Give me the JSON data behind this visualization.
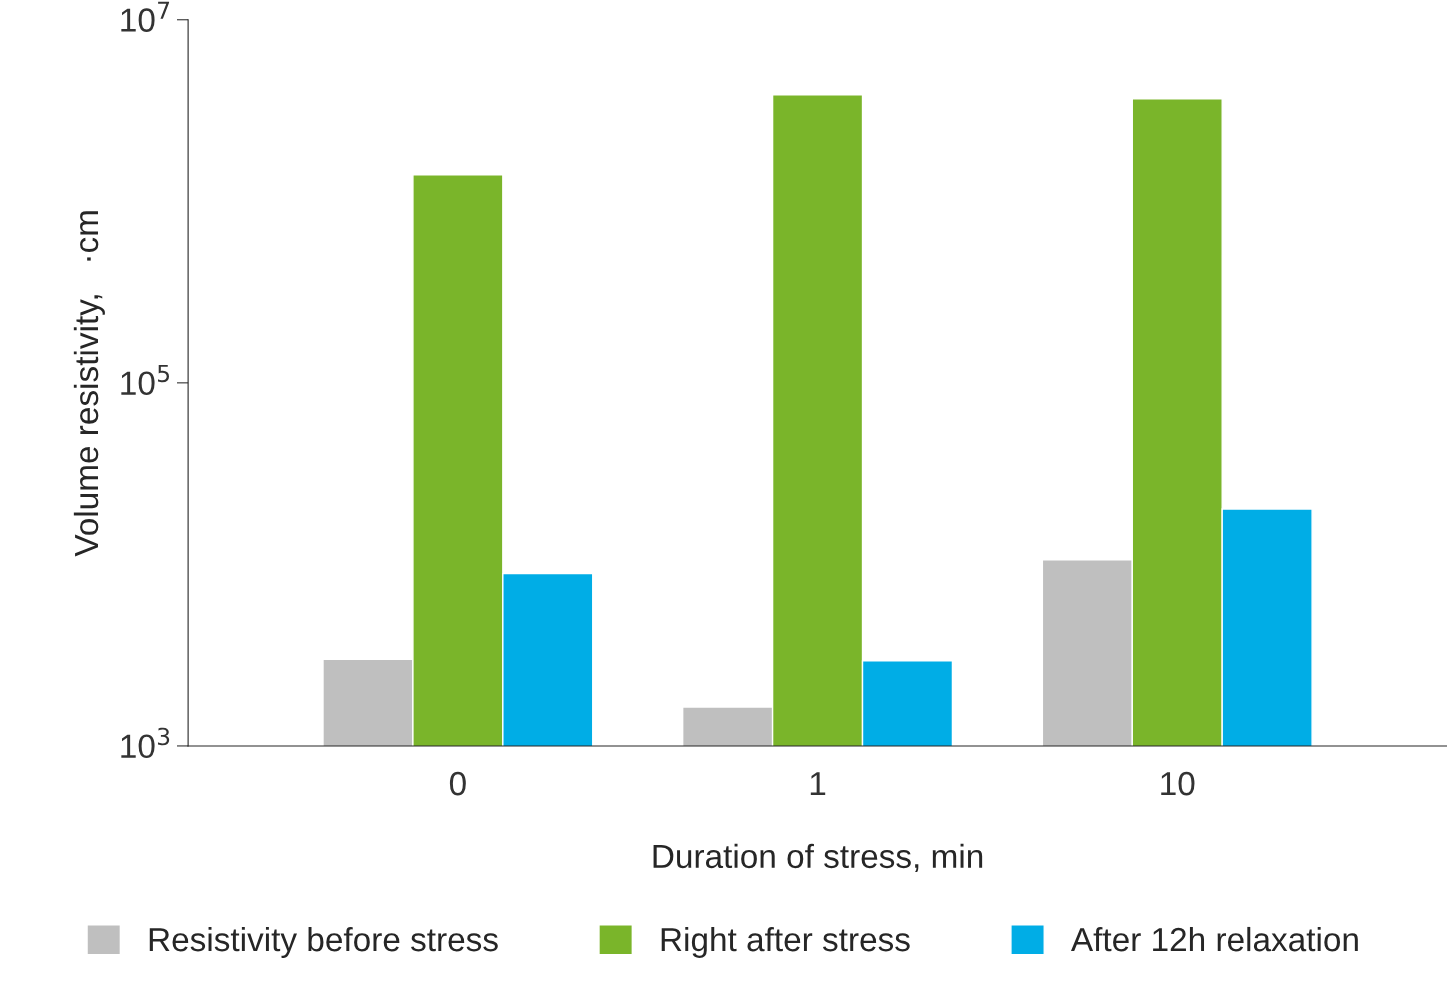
{
  "chart_data": {
    "type": "bar",
    "xlabel": "Duration of stress, min",
    "ylabel": "Volume resistivity,   ·cm",
    "categories": [
      "0",
      "1",
      "10"
    ],
    "series": [
      {
        "name": "Resistivity before stress",
        "color": "#bfbfbf",
        "values": [
          3000,
          1640,
          10600
        ]
      },
      {
        "name": "Right after stress",
        "color": "#7ab52a",
        "values": [
          1400000,
          3860000,
          3670000
        ]
      },
      {
        "name": "After 12h relaxation",
        "color": "#00ade6",
        "values": [
          8900,
          2940,
          20200
        ]
      }
    ],
    "log": "y",
    "ylim": [
      1000,
      10000000
    ],
    "yticks": [
      {
        "value": 1000,
        "label": "10$^{3}$"
      },
      {
        "value": 100000,
        "label": "10$^{5}$"
      },
      {
        "value": 10000000,
        "label": "10$^{7}$"
      }
    ],
    "grid": false,
    "legend": "bottom"
  }
}
